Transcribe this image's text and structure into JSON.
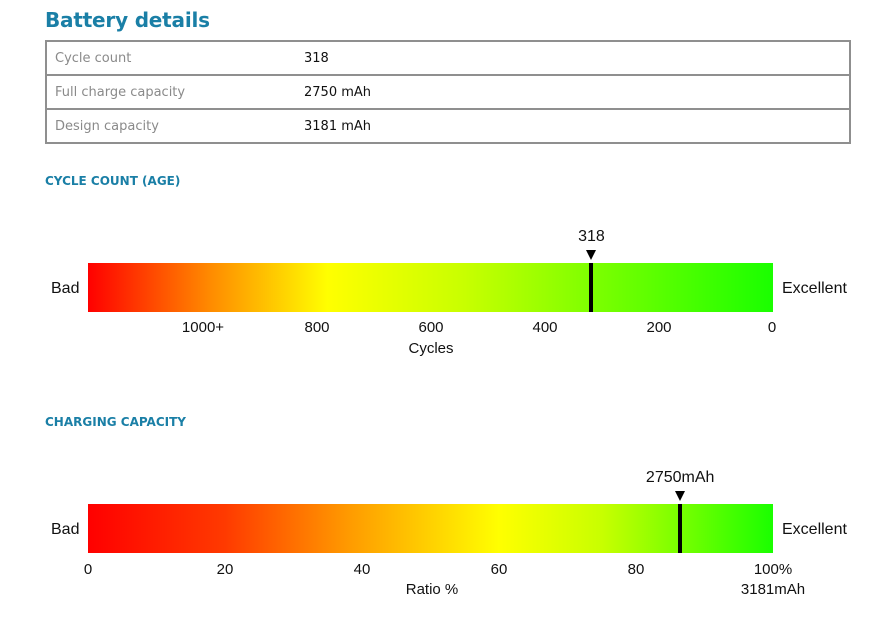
{
  "title": "Battery details",
  "details": [
    {
      "label": "Cycle count",
      "value": "318"
    },
    {
      "label": "Full charge capacity",
      "value": "2750 mAh"
    },
    {
      "label": "Design capacity",
      "value": "3181 mAh"
    }
  ],
  "cycle": {
    "heading": "CYCLE COUNT (AGE)",
    "left_label": "Bad",
    "right_label": "Excellent",
    "marker_label": "318",
    "value": 318,
    "scale_max": 1200,
    "ticks": [
      "1000+",
      "800",
      "600",
      "400",
      "200",
      "0"
    ],
    "axis_label": "Cycles"
  },
  "capacity": {
    "heading": "CHARGING CAPACITY",
    "left_label": "Bad",
    "right_label": "Excellent",
    "marker_label": "2750mAh",
    "percent": 86.45,
    "ticks": [
      "0",
      "20",
      "40",
      "60",
      "80",
      "100%"
    ],
    "axis_label": "Ratio %",
    "design_label": "3181mAh"
  }
}
